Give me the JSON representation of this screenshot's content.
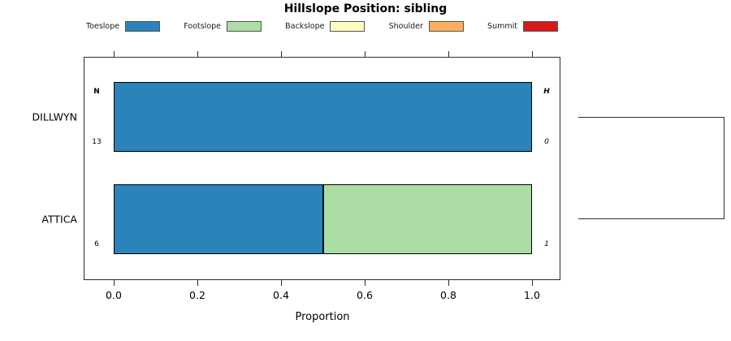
{
  "chart_data": {
    "type": "bar",
    "orientation": "horizontal",
    "stacked": true,
    "title": "Hillslope Position: sibling",
    "xlabel": "Proportion",
    "xlim": [
      0,
      1
    ],
    "x_ticks": [
      "0.0",
      "0.2",
      "0.4",
      "0.6",
      "0.8",
      "1.0"
    ],
    "grid": false,
    "legend_position": "top",
    "categories": [
      "DILLWYN",
      "ATTICA"
    ],
    "series": [
      {
        "name": "Toeslope",
        "color": "#2B83BA",
        "values": [
          1.0,
          0.5
        ]
      },
      {
        "name": "Footslope",
        "color": "#ABDDA4",
        "values": [
          0.0,
          0.5
        ]
      },
      {
        "name": "Backslope",
        "color": "#FFFFBF",
        "values": [
          0.0,
          0.0
        ]
      },
      {
        "name": "Shoulder",
        "color": "#FDAE61",
        "values": [
          0.0,
          0.0
        ]
      },
      {
        "name": "Summit",
        "color": "#D7191C",
        "values": [
          0.0,
          0.0
        ]
      }
    ],
    "annotation_columns": {
      "left": {
        "header": "N",
        "values": [
          "13",
          "6"
        ]
      },
      "right": {
        "header": "H",
        "values": [
          "0",
          "1"
        ]
      }
    },
    "dendrogram": {
      "present": true,
      "connects": [
        "DILLWYN",
        "ATTICA"
      ]
    }
  }
}
